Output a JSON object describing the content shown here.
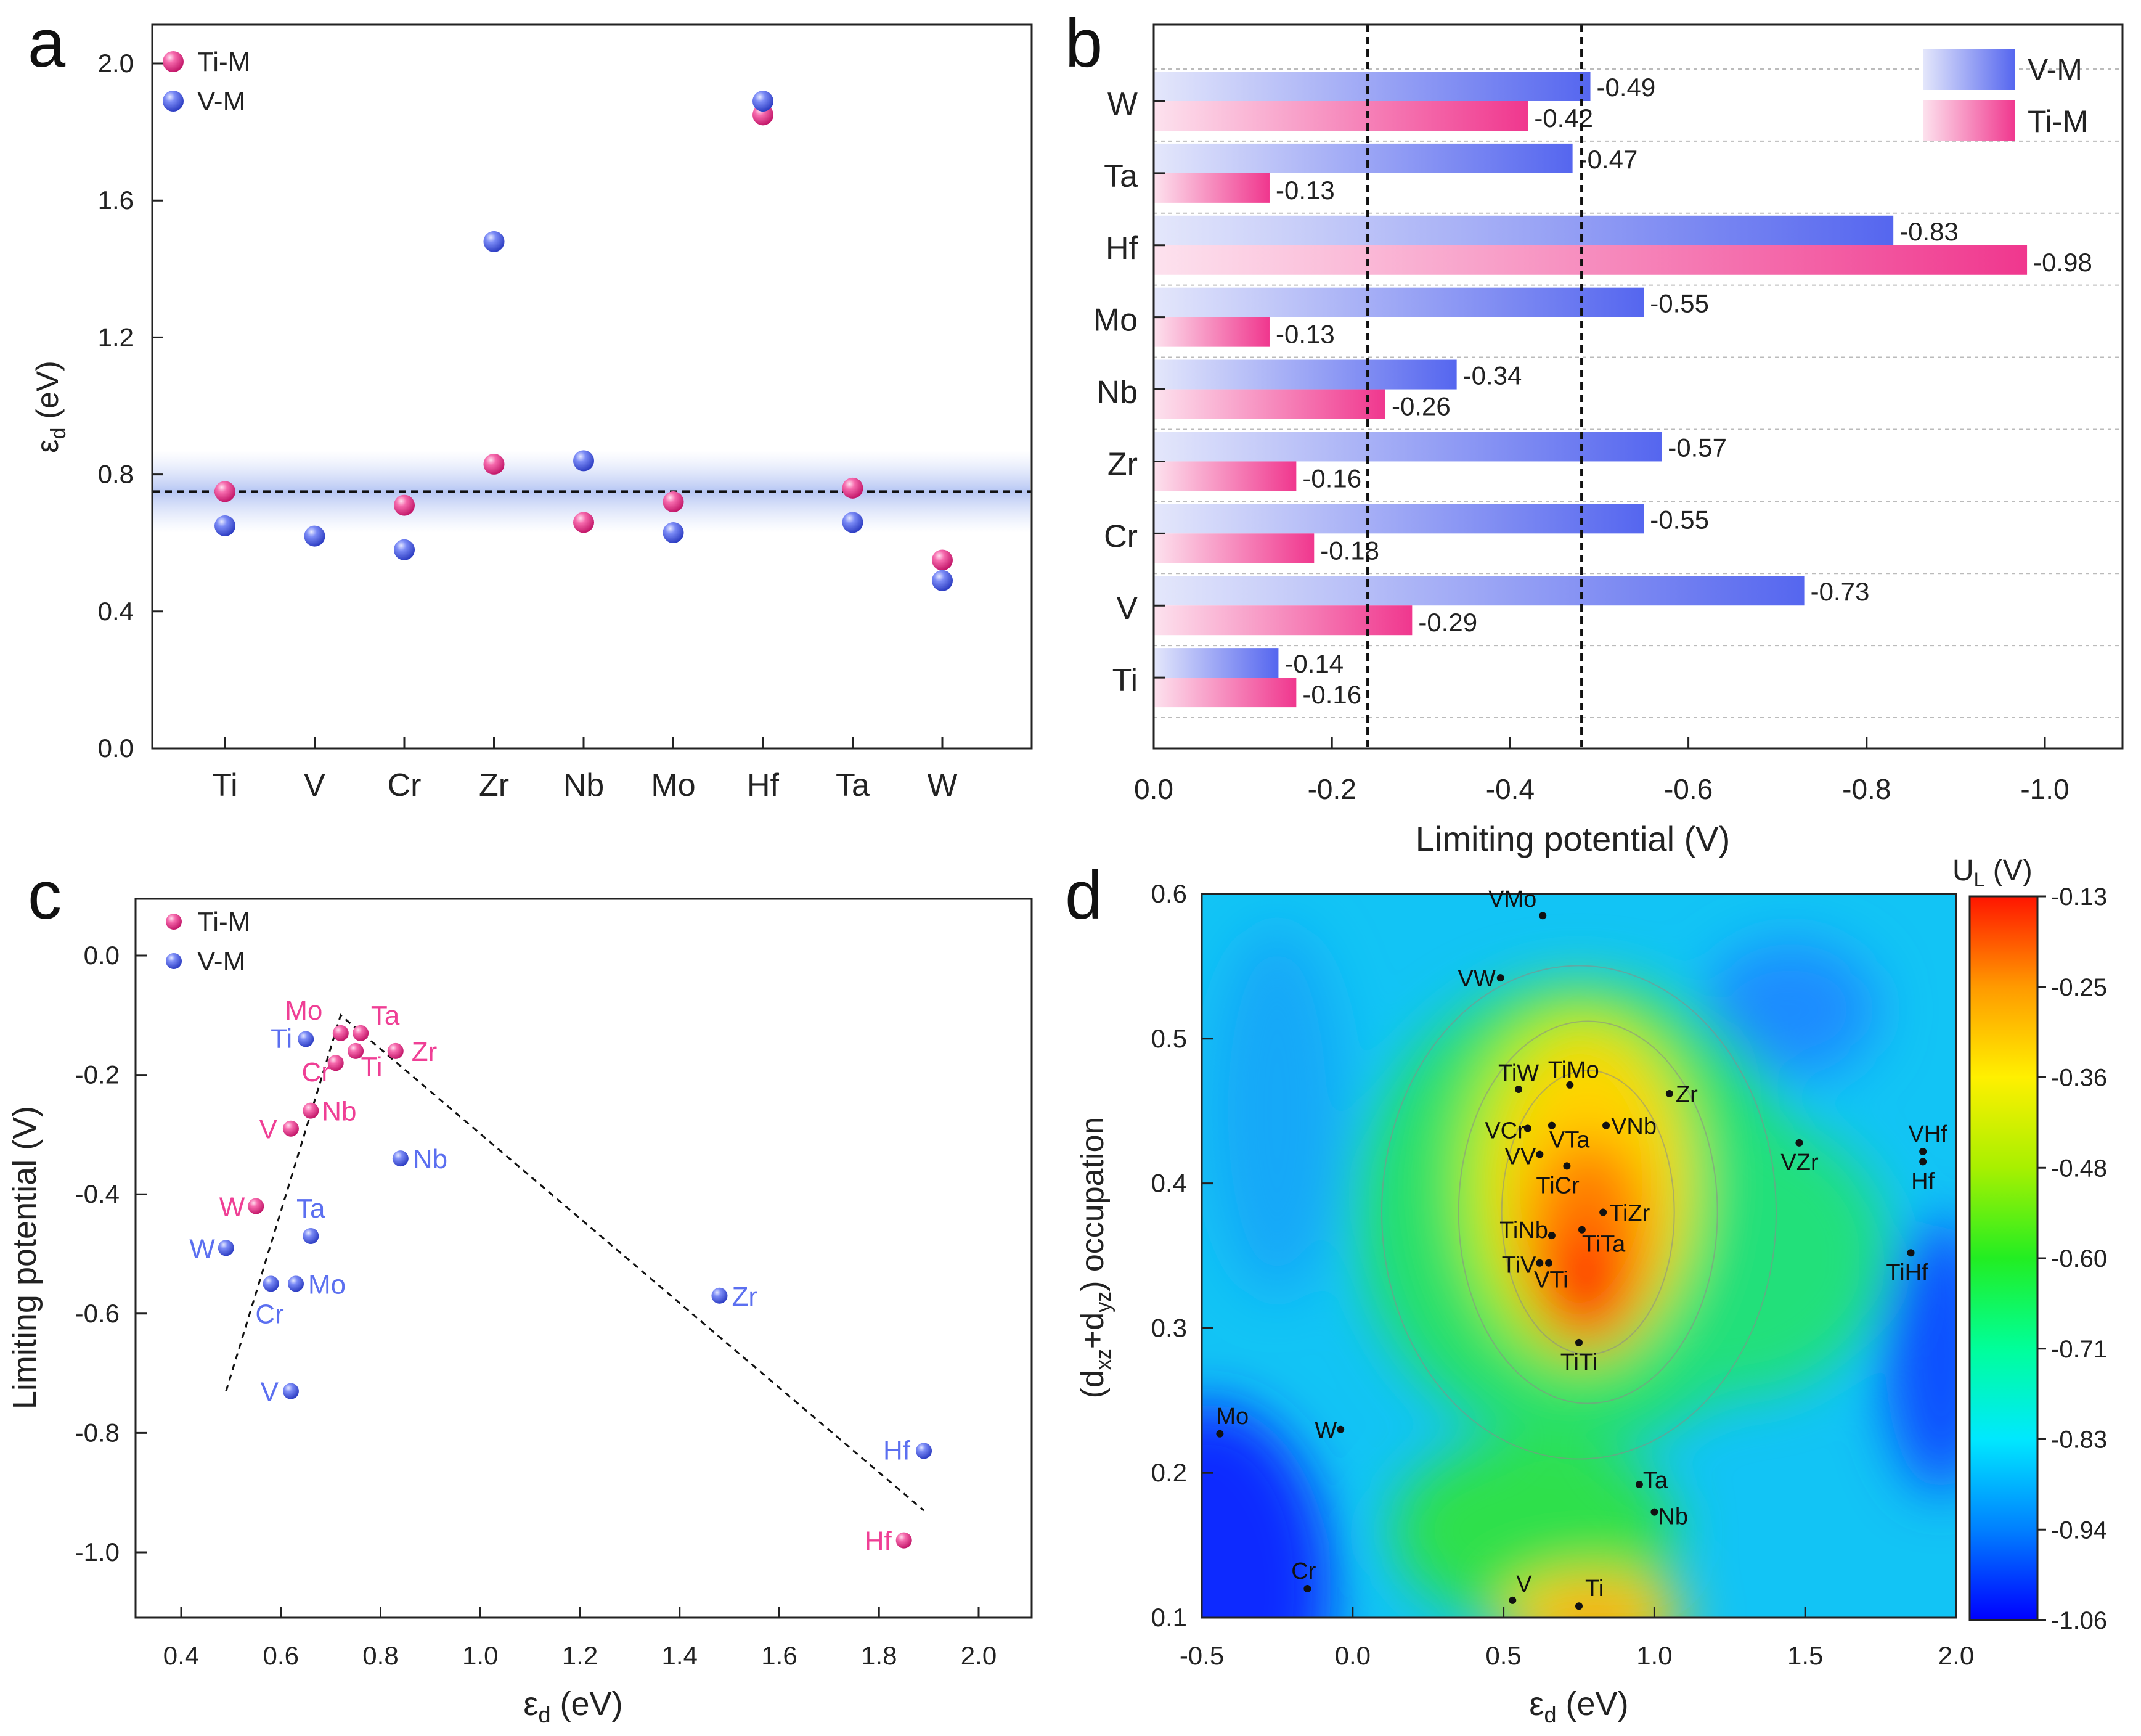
{
  "colors": {
    "ti_m": "#ef3f95",
    "v_m": "#5b6ff0",
    "v_m_light": "#d9def9",
    "ti_m_light": "#fbd6e6",
    "axis": "#222222"
  },
  "chart_data": [
    {
      "panel": "a",
      "type": "scatter",
      "categories": [
        "Ti",
        "V",
        "Cr",
        "Zr",
        "Nb",
        "Mo",
        "Hf",
        "Ta",
        "W"
      ],
      "ylabel_symbol": "ε",
      "ylabel_sub": "d",
      "ylabel_unit": "(eV)",
      "ylim": [
        0.0,
        2.0
      ],
      "yticks": [
        "0.0",
        "0.4",
        "0.8",
        "1.2",
        "1.6",
        "2.0"
      ],
      "reference_line_y": 0.75,
      "band": [
        0.63,
        0.87
      ],
      "legend": [
        "Ti-M",
        "V-M"
      ],
      "series": [
        {
          "name": "Ti-M",
          "values": [
            0.75,
            null,
            0.71,
            0.83,
            0.66,
            0.72,
            1.85,
            0.76,
            0.55
          ]
        },
        {
          "name": "V-M",
          "values": [
            0.65,
            0.62,
            0.58,
            1.48,
            0.84,
            0.63,
            1.89,
            0.66,
            0.49
          ]
        }
      ]
    },
    {
      "panel": "b",
      "type": "bar",
      "orientation": "horizontal",
      "categories": [
        "W",
        "Ta",
        "Hf",
        "Mo",
        "Nb",
        "Zr",
        "Cr",
        "V",
        "Ti"
      ],
      "xlabel": "Limiting potential (V)",
      "xlim": [
        0.0,
        -1.0
      ],
      "xticks": [
        "0.0",
        "-0.2",
        "-0.4",
        "-0.6",
        "-0.8",
        "-1.0"
      ],
      "reference_lines_x": [
        -0.24,
        -0.48
      ],
      "legend": [
        "V-M",
        "Ti-M"
      ],
      "series": [
        {
          "name": "V-M",
          "values": [
            -0.49,
            -0.47,
            -0.83,
            -0.55,
            -0.34,
            -0.57,
            -0.55,
            -0.73,
            -0.14
          ],
          "labels": [
            "-0.49",
            "-0.47",
            "-0.83",
            "-0.55",
            "-0.34",
            "-0.57",
            "-0.55",
            "-0.73",
            "-0.14"
          ]
        },
        {
          "name": "Ti-M",
          "values": [
            -0.42,
            -0.13,
            -0.98,
            -0.13,
            -0.26,
            -0.16,
            -0.18,
            -0.29,
            -0.16
          ],
          "labels": [
            "-0.42",
            "-0.13",
            "-0.98",
            "-0.13",
            "-0.26",
            "-0.16",
            "-0.18",
            "-0.29",
            "-0.16"
          ]
        }
      ]
    },
    {
      "panel": "c",
      "type": "scatter",
      "xlabel_symbol": "ε",
      "xlabel_sub": "d",
      "xlabel_unit": "(eV)",
      "ylabel": "Limiting potential (V)",
      "xlim": [
        0.3,
        2.1
      ],
      "ylim": [
        -1.1,
        0.1
      ],
      "xticks": [
        "0.4",
        "0.6",
        "0.8",
        "1.0",
        "1.2",
        "1.4",
        "1.6",
        "1.8",
        "2.0"
      ],
      "yticks": [
        "0.0",
        "-0.2",
        "-0.4",
        "-0.6",
        "-0.8",
        "-1.0"
      ],
      "legend": [
        "Ti-M",
        "V-M"
      ],
      "trend_lines": [
        [
          [
            0.49,
            -0.73
          ],
          [
            0.72,
            -0.1
          ],
          [
            1.89,
            -0.93
          ]
        ]
      ],
      "series": [
        {
          "name": "Ti-M",
          "points": [
            {
              "label": "Mo",
              "x": 0.72,
              "y": -0.13
            },
            {
              "label": "Ta",
              "x": 0.76,
              "y": -0.13
            },
            {
              "label": "Cr",
              "x": 0.71,
              "y": -0.18
            },
            {
              "label": "Ti",
              "x": 0.75,
              "y": -0.16
            },
            {
              "label": "Zr",
              "x": 0.83,
              "y": -0.16
            },
            {
              "label": "Nb",
              "x": 0.66,
              "y": -0.26
            },
            {
              "label": "V",
              "x": 0.62,
              "y": -0.29
            },
            {
              "label": "W",
              "x": 0.55,
              "y": -0.42
            },
            {
              "label": "Hf",
              "x": 1.85,
              "y": -0.98
            }
          ]
        },
        {
          "name": "V-M",
          "points": [
            {
              "label": "Ti",
              "x": 0.65,
              "y": -0.14
            },
            {
              "label": "Nb",
              "x": 0.84,
              "y": -0.34
            },
            {
              "label": "Ta",
              "x": 0.66,
              "y": -0.47
            },
            {
              "label": "W",
              "x": 0.49,
              "y": -0.49
            },
            {
              "label": "Cr",
              "x": 0.58,
              "y": -0.55
            },
            {
              "label": "Mo",
              "x": 0.63,
              "y": -0.55
            },
            {
              "label": "Zr",
              "x": 1.48,
              "y": -0.57
            },
            {
              "label": "V",
              "x": 0.62,
              "y": -0.73
            },
            {
              "label": "Hf",
              "x": 1.89,
              "y": -0.83
            }
          ]
        }
      ]
    },
    {
      "panel": "d",
      "type": "heatmap",
      "xlabel_symbol": "ε",
      "xlabel_sub": "d",
      "xlabel_unit": "(eV)",
      "ylabel_parts": [
        "(d",
        "xz",
        "+d",
        "yz",
        ") occupation"
      ],
      "xlim": [
        -0.5,
        2.0
      ],
      "ylim": [
        0.1,
        0.6
      ],
      "xticks": [
        "-0.5",
        "0.0",
        "0.5",
        "1.0",
        "1.5",
        "2.0"
      ],
      "yticks": [
        "0.1",
        "0.2",
        "0.3",
        "0.4",
        "0.5",
        "0.6"
      ],
      "colorbar_title": "U",
      "colorbar_title_sub": "L",
      "colorbar_unit": "(V)",
      "colorbar_ticks": [
        "-0.13",
        "-0.25",
        "-0.36",
        "-0.48",
        "-0.60",
        "-0.71",
        "-0.83",
        "-0.94",
        "-1.06"
      ],
      "crange": [
        -1.06,
        -0.13
      ],
      "points": [
        {
          "label": "VMo",
          "x": 0.63,
          "y": 0.585
        },
        {
          "label": "VW",
          "x": 0.49,
          "y": 0.542
        },
        {
          "label": "TiW",
          "x": 0.55,
          "y": 0.465
        },
        {
          "label": "TiMo",
          "x": 0.72,
          "y": 0.468
        },
        {
          "label": "Zr",
          "x": 1.05,
          "y": 0.462
        },
        {
          "label": "VCr",
          "x": 0.58,
          "y": 0.438
        },
        {
          "label": "VTa",
          "x": 0.66,
          "y": 0.44
        },
        {
          "label": "VNb",
          "x": 0.84,
          "y": 0.44
        },
        {
          "label": "VZr",
          "x": 1.48,
          "y": 0.428
        },
        {
          "label": "VHf",
          "x": 1.89,
          "y": 0.422
        },
        {
          "label": "VV",
          "x": 0.62,
          "y": 0.42
        },
        {
          "label": "Hf",
          "x": 1.89,
          "y": 0.415
        },
        {
          "label": "TiCr",
          "x": 0.71,
          "y": 0.412
        },
        {
          "label": "TiZr",
          "x": 0.83,
          "y": 0.38
        },
        {
          "label": "TiNb",
          "x": 0.66,
          "y": 0.364
        },
        {
          "label": "TiTa",
          "x": 0.76,
          "y": 0.368
        },
        {
          "label": "TiHf",
          "x": 1.85,
          "y": 0.352
        },
        {
          "label": "TiV",
          "x": 0.62,
          "y": 0.345
        },
        {
          "label": "VTi",
          "x": 0.65,
          "y": 0.345
        },
        {
          "label": "TiTi",
          "x": 0.75,
          "y": 0.29
        },
        {
          "label": "Mo",
          "x": -0.44,
          "y": 0.227
        },
        {
          "label": "W",
          "x": -0.04,
          "y": 0.23
        },
        {
          "label": "Ta",
          "x": 0.95,
          "y": 0.192
        },
        {
          "label": "Nb",
          "x": 1.0,
          "y": 0.173
        },
        {
          "label": "Cr",
          "x": -0.15,
          "y": 0.12
        },
        {
          "label": "V",
          "x": 0.53,
          "y": 0.112
        },
        {
          "label": "Ti",
          "x": 0.75,
          "y": 0.108
        }
      ]
    }
  ],
  "panel_letters": [
    "a",
    "b",
    "c",
    "d"
  ]
}
